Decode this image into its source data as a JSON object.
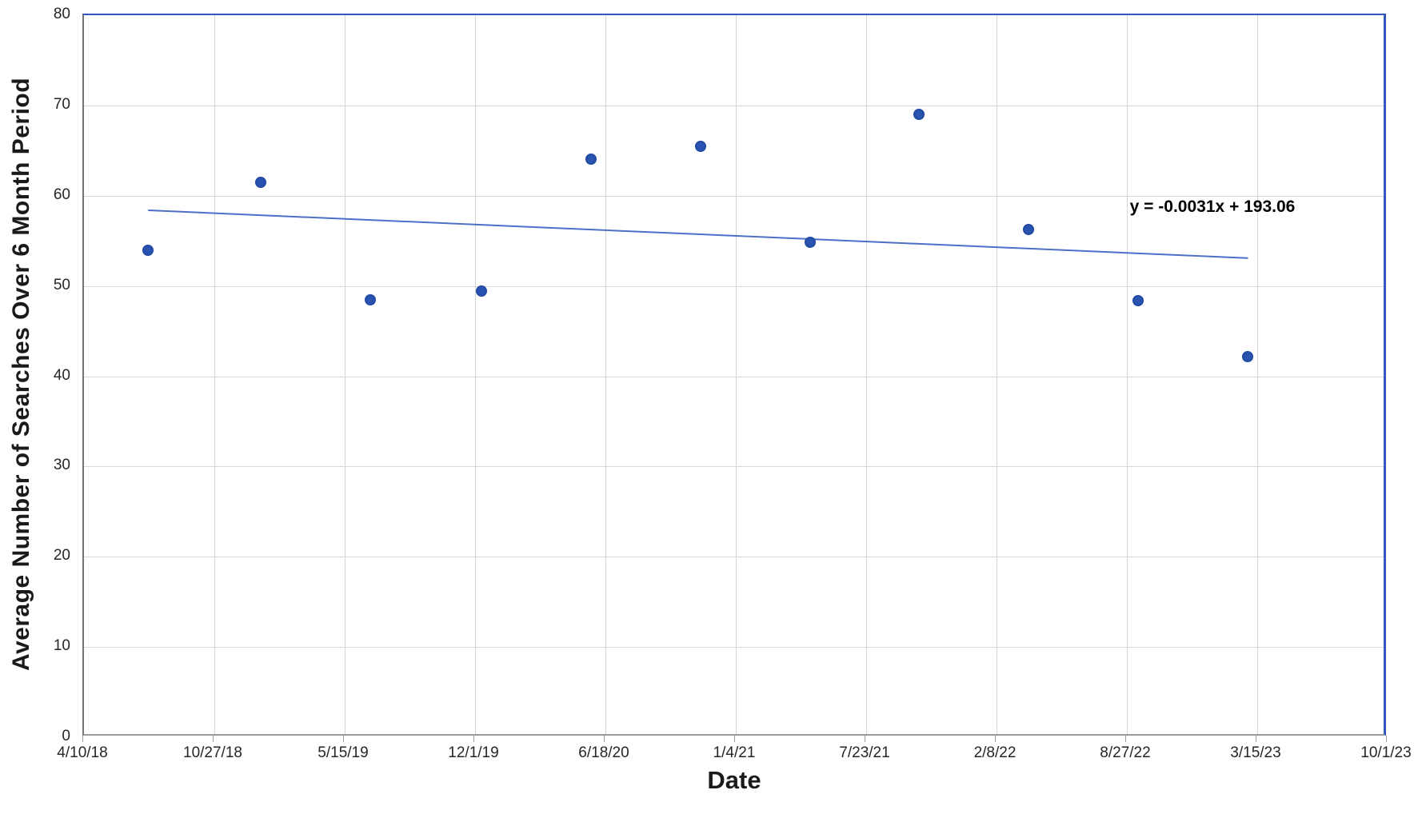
{
  "chart_data": {
    "type": "scatter",
    "title": "",
    "xlabel": "Date",
    "ylabel": "Average Number of Searches Over 6 Month Period",
    "ylim": [
      0,
      80
    ],
    "y_ticks": [
      0,
      10,
      20,
      30,
      40,
      50,
      60,
      70,
      80
    ],
    "x_tick_labels": [
      "4/10/18",
      "10/27/18",
      "5/15/19",
      "12/1/19",
      "6/18/20",
      "1/4/21",
      "7/23/21",
      "2/8/22",
      "8/27/22",
      "3/15/23",
      "10/1/23"
    ],
    "grid": true,
    "legend_position": "none",
    "points": [
      {
        "date_est": "7/19/18",
        "x_frac": 0.05,
        "y": 53.8
      },
      {
        "date_est": "1/10/19",
        "x_frac": 0.137,
        "y": 61.3
      },
      {
        "date_est": "6/26/19",
        "x_frac": 0.221,
        "y": 48.3
      },
      {
        "date_est": "12/13/19",
        "x_frac": 0.306,
        "y": 49.3
      },
      {
        "date_est": "5/30/20",
        "x_frac": 0.39,
        "y": 63.9
      },
      {
        "date_est": "11/13/20",
        "x_frac": 0.474,
        "y": 65.3
      },
      {
        "date_est": "5/1/21",
        "x_frac": 0.558,
        "y": 54.7
      },
      {
        "date_est": "10/16/21",
        "x_frac": 0.642,
        "y": 68.8
      },
      {
        "date_est": "4/2/22",
        "x_frac": 0.726,
        "y": 56.1
      },
      {
        "date_est": "9/16/22",
        "x_frac": 0.81,
        "y": 48.2
      },
      {
        "date_est": "3/3/23",
        "x_frac": 0.894,
        "y": 42.0
      }
    ],
    "trendline": {
      "label": "y = -0.0031x + 193.06",
      "start": {
        "x_frac": 0.05,
        "y": 58.2
      },
      "end": {
        "x_frac": 0.894,
        "y": 52.9
      }
    }
  },
  "colors": {
    "marker": "#2b55b2",
    "marker_edge": "#1e46a0",
    "trendline": "#3e63c4",
    "plot_border_blue": "#3458be",
    "axis_line": "#737373",
    "gridline": "#d9d9d9",
    "tick_text": "#262626",
    "title_text": "#1a1a1a"
  }
}
